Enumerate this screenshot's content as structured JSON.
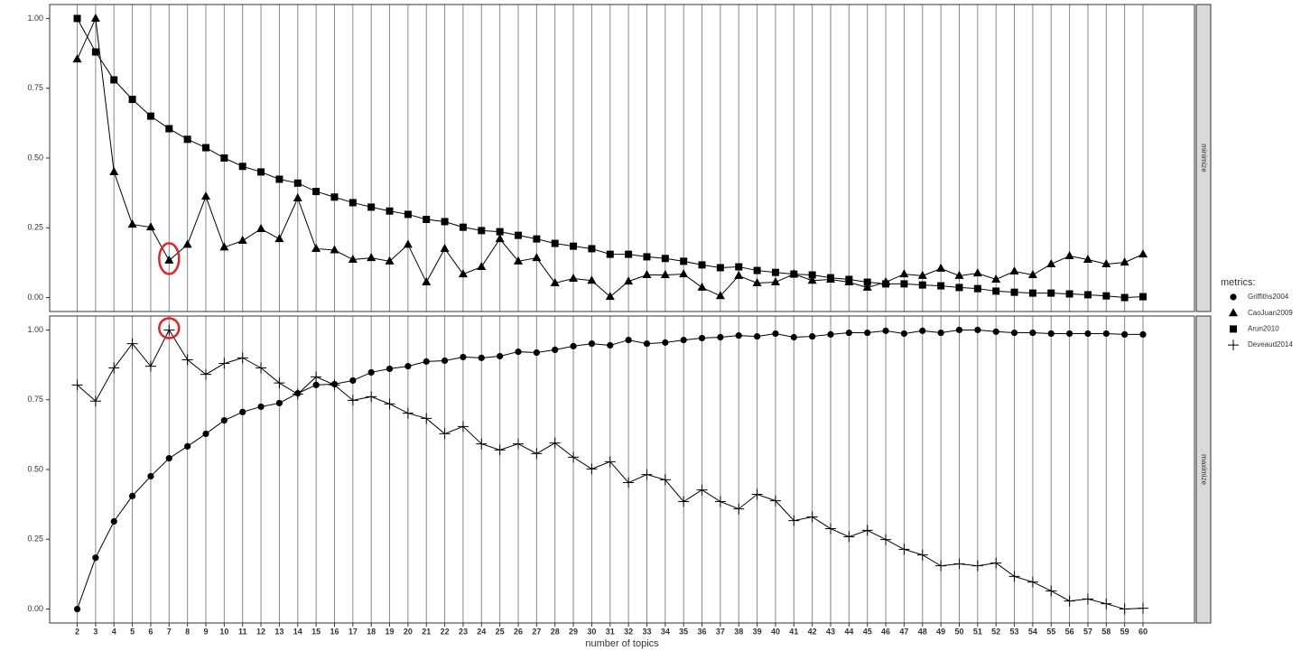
{
  "chart_data": {
    "type": "line",
    "x_label": "number of topics",
    "legend_title": "metrics:",
    "highlight_color": "#e8231f",
    "x": [
      2,
      3,
      4,
      5,
      6,
      7,
      8,
      9,
      10,
      11,
      12,
      13,
      14,
      15,
      16,
      17,
      18,
      19,
      20,
      21,
      22,
      23,
      24,
      25,
      26,
      27,
      28,
      29,
      30,
      31,
      32,
      33,
      34,
      35,
      36,
      37,
      38,
      39,
      40,
      41,
      42,
      43,
      44,
      45,
      46,
      47,
      48,
      49,
      50,
      51,
      52,
      53,
      54,
      55,
      56,
      57,
      58,
      59,
      60
    ],
    "xlim": [
      0.5,
      62.8
    ],
    "panels": [
      {
        "strip": "minimize",
        "ylim": [
          -0.05,
          1.05
        ],
        "yticks": [
          {
            "value": 0,
            "label": "0.00"
          },
          {
            "value": 0.25,
            "label": "0.25"
          },
          {
            "value": 0.5,
            "label": "0.50"
          },
          {
            "value": 0.75,
            "label": "0.75"
          },
          {
            "value": 1,
            "label": "1.00"
          }
        ]
      },
      {
        "strip": "maximize",
        "ylim": [
          -0.05,
          1.05
        ],
        "yticks": [
          {
            "value": 0,
            "label": "0.00"
          },
          {
            "value": 0.25,
            "label": "0.25"
          },
          {
            "value": 0.5,
            "label": "0.50"
          },
          {
            "value": 0.75,
            "label": "0.75"
          },
          {
            "value": 1,
            "label": "1.00"
          }
        ]
      }
    ],
    "series": [
      {
        "name": "Griffiths2004",
        "panel": 1,
        "marker": "circle",
        "color": "#000000",
        "values": [
          0,
          0.184,
          0.314,
          0.405,
          0.476,
          0.54,
          0.583,
          0.628,
          0.676,
          0.706,
          0.725,
          0.738,
          0.773,
          0.803,
          0.806,
          0.819,
          0.848,
          0.861,
          0.87,
          0.887,
          0.89,
          0.903,
          0.9,
          0.906,
          0.922,
          0.919,
          0.929,
          0.942,
          0.951,
          0.945,
          0.964,
          0.951,
          0.955,
          0.964,
          0.971,
          0.974,
          0.98,
          0.977,
          0.987,
          0.974,
          0.977,
          0.984,
          0.99,
          0.99,
          0.997,
          0.987,
          0.997,
          0.99,
          1.0,
          1.0,
          0.994,
          0.99,
          0.99,
          0.987,
          0.987,
          0.987,
          0.987,
          0.984,
          0.984
        ]
      },
      {
        "name": "CaoJuan2009",
        "panel": 0,
        "marker": "triangle",
        "color": "#000000",
        "highlight_x": 7,
        "values": [
          0.854,
          1.0,
          0.45,
          0.262,
          0.252,
          0.133,
          0.19,
          0.362,
          0.18,
          0.204,
          0.246,
          0.21,
          0.356,
          0.175,
          0.17,
          0.136,
          0.142,
          0.13,
          0.19,
          0.055,
          0.175,
          0.084,
          0.11,
          0.21,
          0.13,
          0.142,
          0.052,
          0.068,
          0.061,
          0.003,
          0.058,
          0.081,
          0.081,
          0.084,
          0.036,
          0.006,
          0.078,
          0.052,
          0.055,
          0.084,
          0.061,
          0.065,
          0.055,
          0.036,
          0.055,
          0.084,
          0.078,
          0.104,
          0.078,
          0.087,
          0.065,
          0.094,
          0.081,
          0.12,
          0.149,
          0.136,
          0.12,
          0.126,
          0.155
        ]
      },
      {
        "name": "Arun2010",
        "panel": 0,
        "marker": "square",
        "color": "#000000",
        "values": [
          1.0,
          0.88,
          0.78,
          0.71,
          0.65,
          0.605,
          0.567,
          0.537,
          0.5,
          0.47,
          0.45,
          0.424,
          0.41,
          0.38,
          0.36,
          0.34,
          0.324,
          0.31,
          0.298,
          0.28,
          0.272,
          0.252,
          0.24,
          0.236,
          0.223,
          0.21,
          0.194,
          0.184,
          0.175,
          0.155,
          0.155,
          0.146,
          0.14,
          0.13,
          0.117,
          0.107,
          0.11,
          0.097,
          0.09,
          0.084,
          0.081,
          0.071,
          0.065,
          0.055,
          0.049,
          0.049,
          0.045,
          0.042,
          0.036,
          0.032,
          0.023,
          0.019,
          0.016,
          0.016,
          0.013,
          0.01,
          0.006,
          0,
          0.003
        ]
      },
      {
        "name": "Deveaud2014",
        "panel": 1,
        "marker": "plus",
        "color": "#000000",
        "highlight_x": 7,
        "values": [
          0.803,
          0.745,
          0.864,
          0.951,
          0.87,
          1.0,
          0.893,
          0.841,
          0.88,
          0.9,
          0.864,
          0.81,
          0.77,
          0.832,
          0.803,
          0.748,
          0.761,
          0.735,
          0.702,
          0.683,
          0.628,
          0.654,
          0.592,
          0.57,
          0.592,
          0.557,
          0.595,
          0.544,
          0.502,
          0.528,
          0.453,
          0.482,
          0.463,
          0.385,
          0.427,
          0.385,
          0.359,
          0.411,
          0.388,
          0.317,
          0.33,
          0.288,
          0.259,
          0.282,
          0.249,
          0.214,
          0.194,
          0.155,
          0.162,
          0.155,
          0.165,
          0.117,
          0.097,
          0.065,
          0.029,
          0.036,
          0.019,
          0,
          0.003
        ]
      }
    ]
  }
}
